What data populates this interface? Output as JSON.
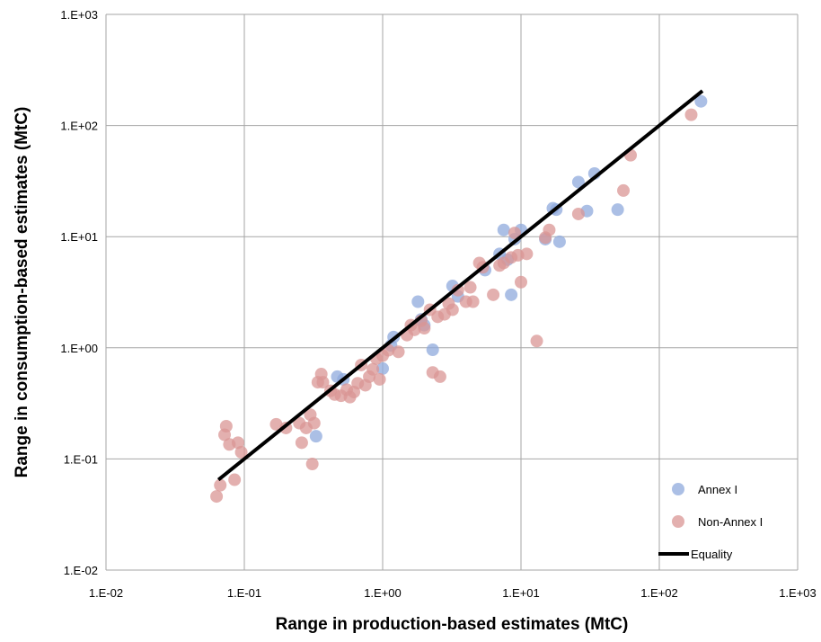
{
  "chart_data": {
    "type": "scatter",
    "title": "",
    "xlabel": "Range in production-based estimates (MtC)",
    "ylabel": "Range in consumption-based estimates (MtC)",
    "xscale": "log",
    "yscale": "log",
    "xlim": [
      0.01,
      1000
    ],
    "ylim": [
      0.01,
      1000
    ],
    "x_ticks": [
      "1.E-02",
      "1.E-01",
      "1.E+00",
      "1.E+01",
      "1.E+02",
      "1.E+03"
    ],
    "y_ticks": [
      "1.E-02",
      "1.E-01",
      "1.E+00",
      "1.E+01",
      "1.E+02",
      "1.E+03"
    ],
    "grid": true,
    "legend_position": "bottom-right",
    "series": [
      {
        "name": "Annex I",
        "color": "#8faadc",
        "points": [
          [
            0.33,
            0.16
          ],
          [
            0.47,
            0.55
          ],
          [
            0.52,
            0.52
          ],
          [
            1.0,
            0.65
          ],
          [
            1.15,
            1.05
          ],
          [
            1.2,
            1.25
          ],
          [
            1.8,
            2.6
          ],
          [
            1.9,
            1.8
          ],
          [
            2.0,
            1.6
          ],
          [
            2.3,
            0.96
          ],
          [
            3.2,
            3.6
          ],
          [
            3.5,
            2.9
          ],
          [
            5.5,
            5.0
          ],
          [
            7.0,
            7.0
          ],
          [
            7.5,
            11.5
          ],
          [
            8.0,
            6.2
          ],
          [
            8.5,
            3.0
          ],
          [
            9.0,
            9.5
          ],
          [
            10.0,
            11.5
          ],
          [
            15.0,
            9.5
          ],
          [
            17.0,
            18.0
          ],
          [
            18.0,
            17.5
          ],
          [
            19.0,
            9.0
          ],
          [
            26.0,
            31.0
          ],
          [
            30.0,
            17.0
          ],
          [
            34.0,
            37.0
          ],
          [
            50.0,
            17.5
          ],
          [
            200.0,
            165.0
          ]
        ]
      },
      {
        "name": "Non-Annex I",
        "color": "#d99694",
        "points": [
          [
            0.063,
            0.046
          ],
          [
            0.067,
            0.058
          ],
          [
            0.072,
            0.165
          ],
          [
            0.074,
            0.197
          ],
          [
            0.078,
            0.135
          ],
          [
            0.085,
            0.065
          ],
          [
            0.09,
            0.14
          ],
          [
            0.095,
            0.115
          ],
          [
            0.17,
            0.205
          ],
          [
            0.2,
            0.19
          ],
          [
            0.25,
            0.21
          ],
          [
            0.26,
            0.14
          ],
          [
            0.28,
            0.19
          ],
          [
            0.3,
            0.25
          ],
          [
            0.31,
            0.09
          ],
          [
            0.32,
            0.21
          ],
          [
            0.34,
            0.49
          ],
          [
            0.36,
            0.58
          ],
          [
            0.37,
            0.49
          ],
          [
            0.42,
            0.41
          ],
          [
            0.45,
            0.38
          ],
          [
            0.5,
            0.37
          ],
          [
            0.55,
            0.42
          ],
          [
            0.58,
            0.36
          ],
          [
            0.62,
            0.4
          ],
          [
            0.66,
            0.48
          ],
          [
            0.7,
            0.7
          ],
          [
            0.75,
            0.46
          ],
          [
            0.8,
            0.55
          ],
          [
            0.85,
            0.64
          ],
          [
            0.9,
            0.8
          ],
          [
            0.95,
            0.52
          ],
          [
            1.0,
            0.85
          ],
          [
            1.1,
            0.95
          ],
          [
            1.3,
            0.92
          ],
          [
            1.5,
            1.3
          ],
          [
            1.6,
            1.6
          ],
          [
            1.7,
            1.45
          ],
          [
            1.9,
            1.75
          ],
          [
            2.0,
            1.5
          ],
          [
            2.2,
            2.2
          ],
          [
            2.3,
            0.6
          ],
          [
            2.5,
            1.9
          ],
          [
            2.6,
            0.55
          ],
          [
            2.8,
            2.0
          ],
          [
            3.0,
            2.5
          ],
          [
            3.2,
            2.2
          ],
          [
            3.5,
            3.3
          ],
          [
            4.0,
            2.6
          ],
          [
            4.3,
            3.5
          ],
          [
            4.5,
            2.6
          ],
          [
            5.0,
            5.8
          ],
          [
            5.3,
            5.3
          ],
          [
            6.3,
            3.0
          ],
          [
            7.0,
            5.5
          ],
          [
            7.5,
            5.8
          ],
          [
            8.5,
            6.5
          ],
          [
            9.0,
            10.8
          ],
          [
            9.5,
            6.8
          ],
          [
            10.0,
            3.9
          ],
          [
            11.0,
            7.0
          ],
          [
            13.0,
            1.15
          ],
          [
            15.0,
            9.8
          ],
          [
            16.0,
            11.5
          ],
          [
            26.0,
            16.0
          ],
          [
            55.0,
            26.0
          ],
          [
            62.0,
            54.0
          ],
          [
            170.0,
            125.0
          ]
        ]
      }
    ],
    "lines": [
      {
        "name": "Equality",
        "color": "#000000",
        "x": [
          0.065,
          205
        ],
        "y": [
          0.065,
          205
        ]
      }
    ],
    "legend": [
      {
        "label": "Annex I",
        "kind": "marker",
        "color": "#8faadc"
      },
      {
        "label": "Non-Annex I",
        "kind": "marker",
        "color": "#d99694"
      },
      {
        "label": "Equality",
        "kind": "line",
        "color": "#000000"
      }
    ]
  }
}
